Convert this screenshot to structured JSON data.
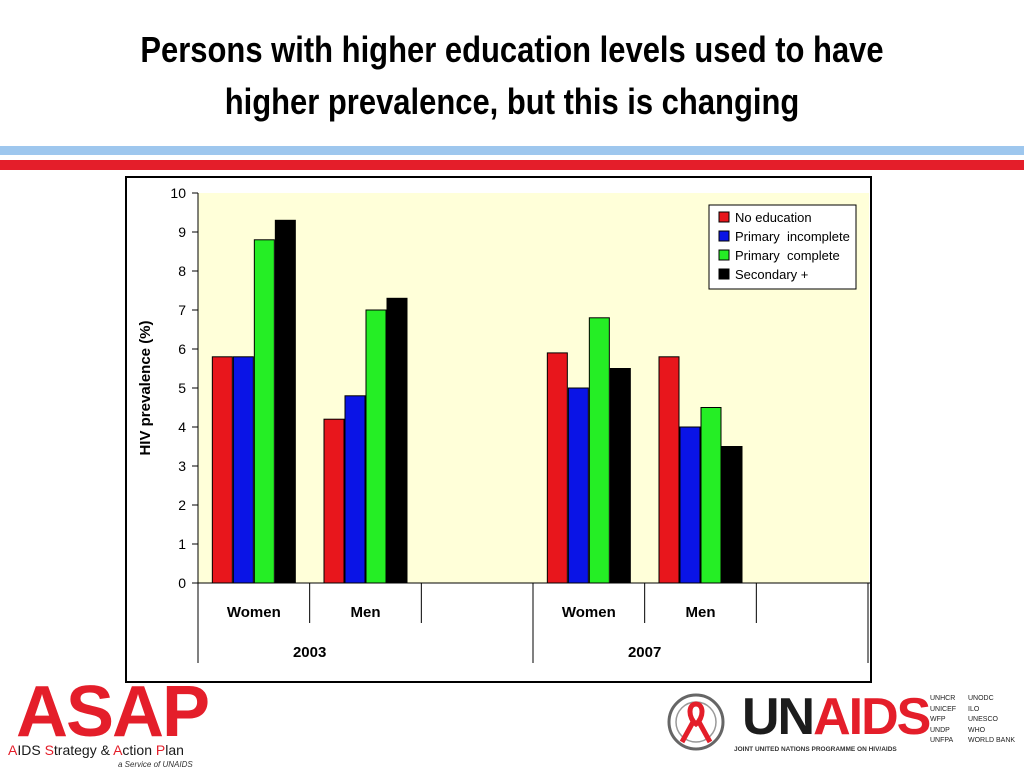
{
  "slide": {
    "title_line1": "Persons with higher education levels used to have",
    "title_line2": "higher prevalence, but this is changing"
  },
  "chart_data": {
    "type": "bar",
    "ylabel": "HIV prevalence (%)",
    "ylim": [
      0,
      10
    ],
    "yticks": [
      0,
      1,
      2,
      3,
      4,
      5,
      6,
      7,
      8,
      9,
      10
    ],
    "groups": [
      {
        "year": "2003",
        "categories": [
          "Women",
          "Men"
        ]
      },
      {
        "year": "2007",
        "categories": [
          "Women",
          "Men"
        ]
      }
    ],
    "categories": [
      "Women",
      "Men",
      "",
      "Women",
      "Men",
      ""
    ],
    "series": [
      {
        "name": "No education",
        "color": "#e8161c",
        "values": [
          5.8,
          4.2,
          null,
          5.9,
          5.8,
          null
        ]
      },
      {
        "name": "Primary  incomplete",
        "color": "#0a14e6",
        "values": [
          5.8,
          4.8,
          null,
          5.0,
          4.0,
          null
        ]
      },
      {
        "name": "Primary  complete",
        "color": "#25ee25",
        "values": [
          8.8,
          7.0,
          null,
          6.8,
          4.5,
          null
        ]
      },
      {
        "name": "Secondary +",
        "color": "#000000",
        "values": [
          9.3,
          7.3,
          null,
          5.5,
          3.5,
          null
        ]
      }
    ],
    "grid": false,
    "legend": "top-right",
    "plot_background": "#ffffd9"
  },
  "footer": {
    "asap_logo": "ASAP",
    "asap_tagline_a": "A",
    "asap_tagline_b": "IDS ",
    "asap_tagline_c": "S",
    "asap_tagline_d": "trategy & ",
    "asap_tagline_e": "A",
    "asap_tagline_f": "ction ",
    "asap_tagline_g": "P",
    "asap_tagline_h": "lan",
    "asap_service": "a Service of UNAIDS",
    "unaids_un": "UN",
    "unaids_aids": "AIDS",
    "unaids_programme": "JOINT UNITED NATIONS PROGRAMME ON HIV/AIDS",
    "cosponsors_col1": [
      "UNHCR",
      "UNICEF",
      "WFP",
      "UNDP",
      "UNFPA"
    ],
    "cosponsors_col2": [
      "UNODC",
      "ILO",
      "UNESCO",
      "WHO",
      "WORLD BANK"
    ]
  },
  "colors": {
    "accent_red": "#e41e2a",
    "accent_blue": "#9ec7ee"
  },
  "icons": {
    "ribbon": "red-ribbon-icon"
  }
}
